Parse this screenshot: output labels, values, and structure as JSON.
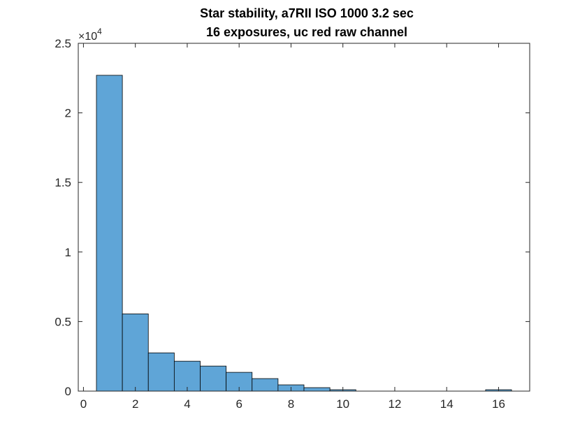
{
  "chart_data": {
    "type": "bar",
    "title": [
      "Star stability, a7RII ISO 1000 3.2 sec",
      "16 exposures, uc red raw channel"
    ],
    "xlabel": "",
    "ylabel": "",
    "xlim": [
      -0.2,
      17.2
    ],
    "ylim": [
      0,
      25000
    ],
    "xticks": [
      0,
      2,
      4,
      6,
      8,
      10,
      12,
      14,
      16
    ],
    "yticks": [
      0,
      5000,
      10000,
      15000,
      20000,
      25000
    ],
    "ytick_labels": [
      "0",
      "0.5",
      "1",
      "1.5",
      "2",
      "2.5"
    ],
    "y_exponent": {
      "base": "10",
      "power": "4"
    },
    "bin_width": 1,
    "bins": [
      {
        "center": 1,
        "count": 22700
      },
      {
        "center": 2,
        "count": 5550
      },
      {
        "center": 3,
        "count": 2750
      },
      {
        "center": 4,
        "count": 2150
      },
      {
        "center": 5,
        "count": 1800
      },
      {
        "center": 6,
        "count": 1350
      },
      {
        "center": 7,
        "count": 900
      },
      {
        "center": 8,
        "count": 450
      },
      {
        "center": 9,
        "count": 250
      },
      {
        "center": 10,
        "count": 100
      },
      {
        "center": 11,
        "count": 0
      },
      {
        "center": 12,
        "count": 0
      },
      {
        "center": 13,
        "count": 0
      },
      {
        "center": 14,
        "count": 0
      },
      {
        "center": 15,
        "count": 0
      },
      {
        "center": 16,
        "count": 100
      }
    ],
    "bar_color": "#5FA5D7",
    "bar_edge_color": "#000000",
    "grid": false,
    "legend": "none"
  }
}
